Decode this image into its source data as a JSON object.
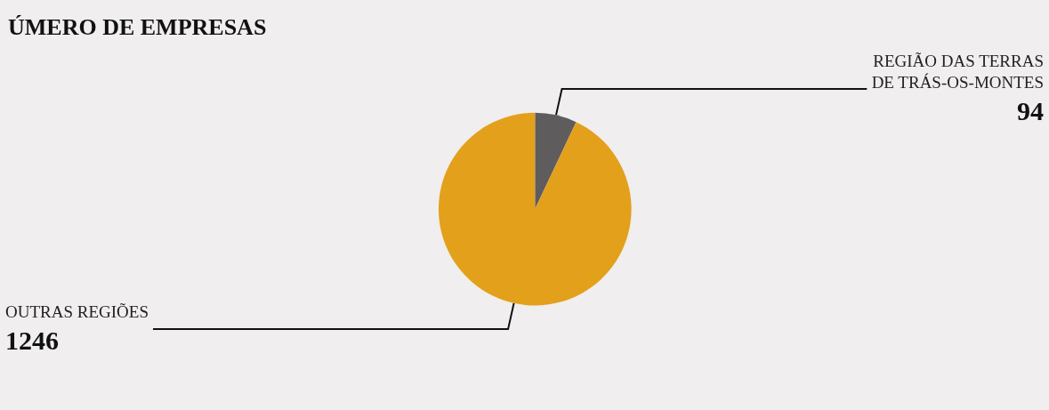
{
  "chart_data": {
    "type": "pie",
    "title": "ÚMERO DE EMPRESAS",
    "categories": [
      "REGIÃO DAS TERRAS\nDE TRÁS-OS-MONTES",
      "OUTRAS REGIÕES"
    ],
    "values": [
      94,
      1246
    ],
    "colors": [
      "#5f5c5e",
      "#e3a01b"
    ],
    "data_labels": true,
    "legend": false
  }
}
